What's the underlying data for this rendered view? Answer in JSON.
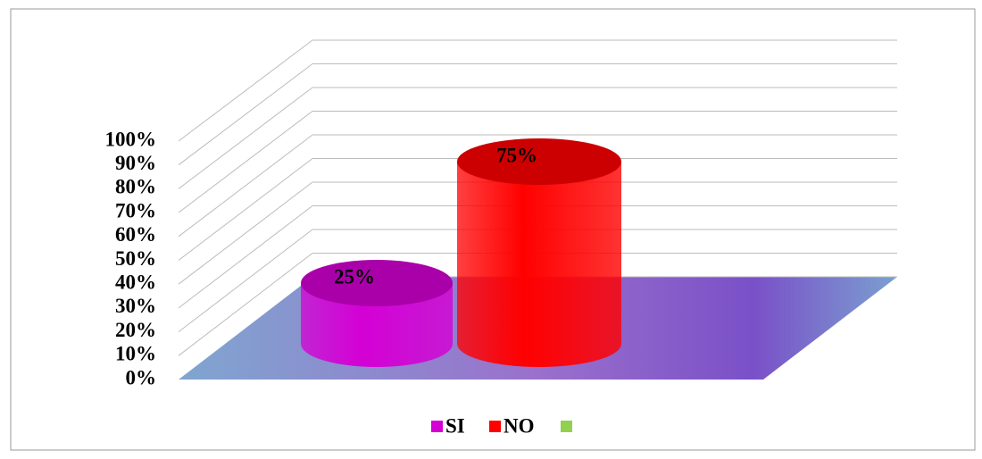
{
  "chart_data": {
    "type": "bar3d",
    "categories": [
      null
    ],
    "series": [
      {
        "name": "SI",
        "color": "#d400d4",
        "values": [
          25
        ],
        "value_labels": [
          "25%"
        ]
      },
      {
        "name": "NO",
        "color": "#ff0000",
        "values": [
          75
        ],
        "value_labels": [
          "75%"
        ]
      }
    ],
    "ylim": [
      0,
      100
    ],
    "yticks": [
      {
        "value": 0,
        "label": "0%"
      },
      {
        "value": 10,
        "label": "10%"
      },
      {
        "value": 20,
        "label": "20%"
      },
      {
        "value": 30,
        "label": "30%"
      },
      {
        "value": 40,
        "label": "40%"
      },
      {
        "value": 50,
        "label": "50%"
      },
      {
        "value": 60,
        "label": "60%"
      },
      {
        "value": 70,
        "label": "70%"
      },
      {
        "value": 80,
        "label": "80%"
      },
      {
        "value": 90,
        "label": "90%"
      },
      {
        "value": 100,
        "label": "100%"
      }
    ],
    "grid": true,
    "legend": "bottom"
  }
}
